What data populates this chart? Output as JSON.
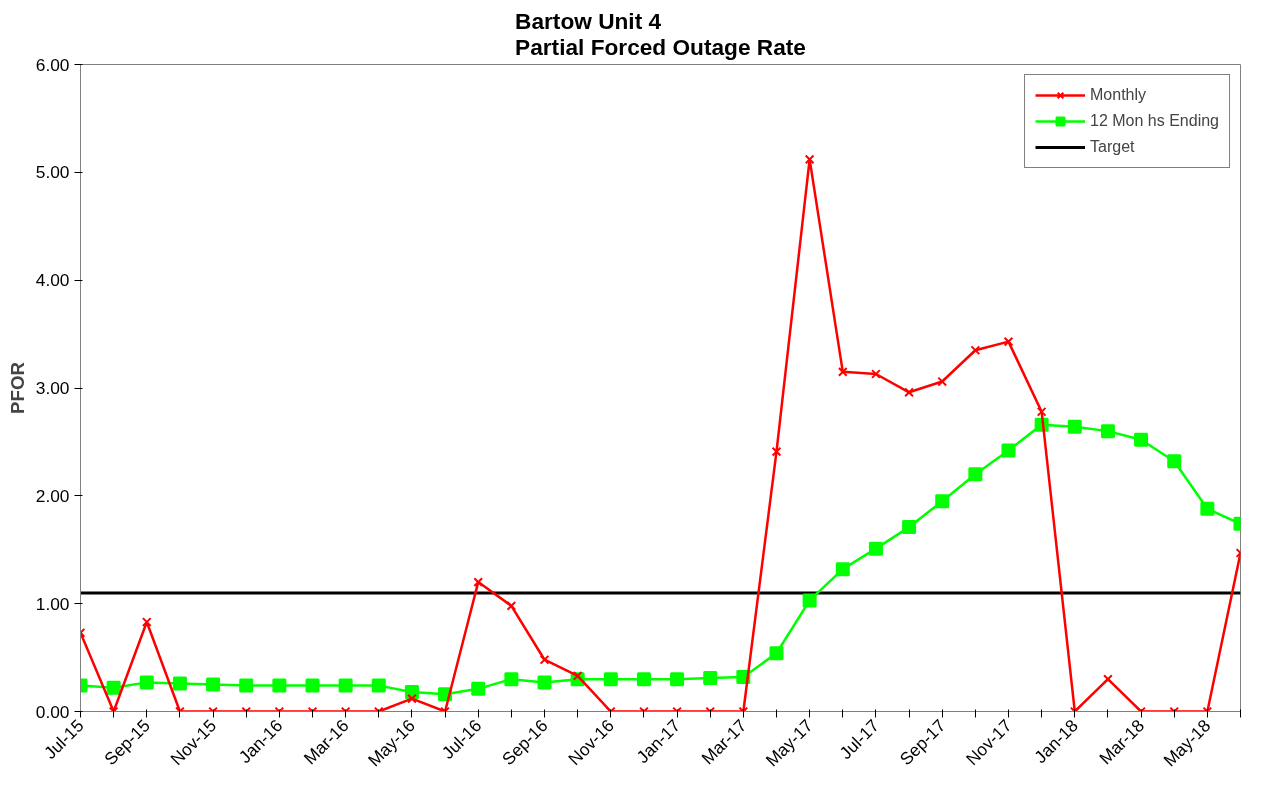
{
  "chart_data": {
    "type": "line",
    "title": "Bartow Unit 4\nPartial Forced Outage Rate",
    "ylabel": "PFOR",
    "categories": [
      "Jul-15",
      null,
      "Sep-15",
      null,
      "Nov-15",
      null,
      "Jan-16",
      null,
      "Mar-16",
      null,
      "May-16",
      null,
      "Jul-16",
      null,
      "Sep-16",
      null,
      "Nov-16",
      null,
      "Jan-17",
      null,
      "Mar-17",
      null,
      "May-17",
      null,
      "Jul-17",
      null,
      "Sep-17",
      null,
      "Nov-17",
      null,
      "Jan-18",
      null,
      "Mar-18",
      null,
      "May-18",
      null
    ],
    "series": [
      {
        "name": "Monthly",
        "color": "#ff0000",
        "marker": "cross",
        "values": [
          0.73,
          0,
          0.83,
          0,
          0,
          0,
          0,
          0,
          0,
          0,
          0.12,
          0,
          1.2,
          0.98,
          0.48,
          0.33,
          0,
          0,
          0,
          0,
          0,
          2.41,
          5.12,
          3.15,
          3.13,
          2.96,
          3.06,
          3.35,
          3.43,
          2.78,
          0,
          0.3,
          0,
          0,
          0,
          1.47
        ]
      },
      {
        "name": "12 Mon hs Ending",
        "color": "#00ff00",
        "marker": "square",
        "values": [
          0.24,
          0.22,
          0.27,
          0.26,
          0.25,
          0.24,
          0.24,
          0.24,
          0.24,
          0.24,
          0.18,
          0.16,
          0.21,
          0.3,
          0.27,
          0.3,
          0.3,
          0.3,
          0.3,
          0.31,
          0.32,
          0.54,
          1.03,
          1.32,
          1.51,
          1.71,
          1.95,
          2.2,
          2.42,
          2.66,
          2.64,
          2.6,
          2.52,
          2.32,
          1.88,
          1.74
        ]
      },
      {
        "name": "Target",
        "color": "#000000",
        "marker": "none",
        "values": [
          1.1,
          1.1,
          1.1,
          1.1,
          1.1,
          1.1,
          1.1,
          1.1,
          1.1,
          1.1,
          1.1,
          1.1,
          1.1,
          1.1,
          1.1,
          1.1,
          1.1,
          1.1,
          1.1,
          1.1,
          1.1,
          1.1,
          1.1,
          1.1,
          1.1,
          1.1,
          1.1,
          1.1,
          1.1,
          1.1,
          1.1,
          1.1,
          1.1,
          1.1,
          1.1,
          1.1
        ]
      }
    ],
    "ylim": [
      0,
      6
    ],
    "yticks": [
      {
        "value": 0,
        "label": "0.00"
      },
      {
        "value": 1,
        "label": "1.00"
      },
      {
        "value": 2,
        "label": "2.00"
      },
      {
        "value": 3,
        "label": "3.00"
      },
      {
        "value": 4,
        "label": "4.00"
      },
      {
        "value": 5,
        "label": "5.00"
      },
      {
        "value": 6,
        "label": "6.00"
      }
    ],
    "grid": false,
    "legend": "top right"
  }
}
